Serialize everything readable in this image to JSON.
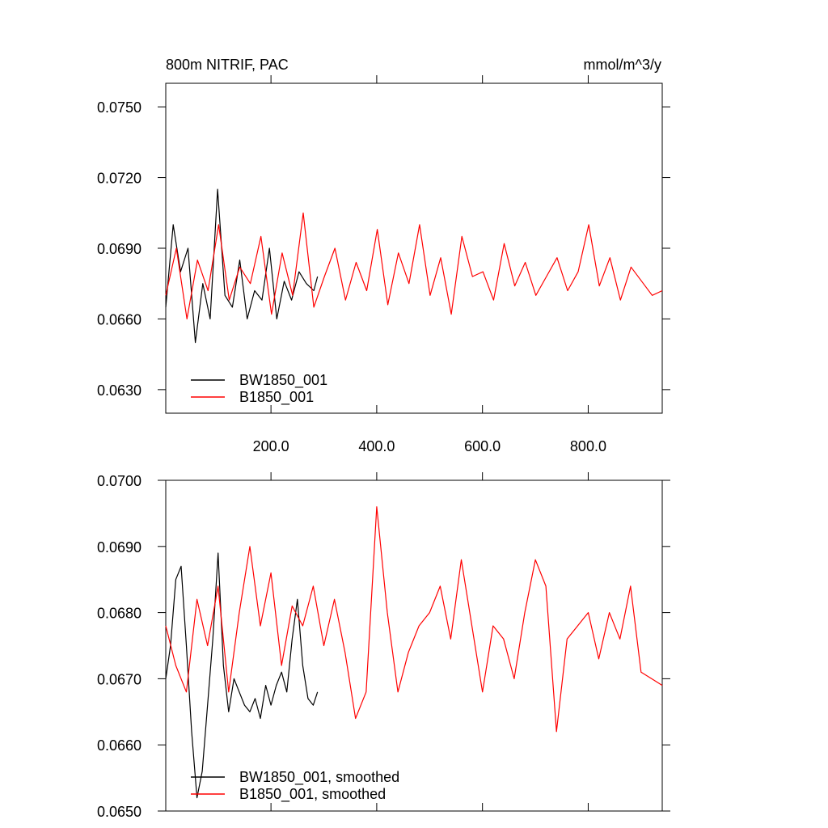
{
  "chart_data": [
    {
      "type": "line",
      "title": "800m NITRIF, PAC",
      "units": "mmol/m^3/y",
      "xlim": [
        1,
        940
      ],
      "ylim": [
        0.062,
        0.076
      ],
      "x_ticks": [
        {
          "value": 200,
          "label": "200.0"
        },
        {
          "value": 400,
          "label": "400.0"
        },
        {
          "value": 600,
          "label": "600.0"
        },
        {
          "value": 800,
          "label": "800.0"
        }
      ],
      "y_ticks": [
        {
          "value": 0.063,
          "label": "0.0630"
        },
        {
          "value": 0.066,
          "label": "0.0660"
        },
        {
          "value": 0.069,
          "label": "0.0690"
        },
        {
          "value": 0.072,
          "label": "0.0720"
        },
        {
          "value": 0.075,
          "label": "0.0750"
        }
      ],
      "grid": false,
      "legend_position": "bottom-left",
      "series": [
        {
          "name": "BW1850_001",
          "color": "#000000",
          "x": [
            1,
            15,
            29,
            43,
            57,
            71,
            85,
            99,
            113,
            127,
            141,
            155,
            169,
            183,
            197,
            211,
            225,
            239,
            253,
            267,
            281,
            288
          ],
          "values": [
            0.0665,
            0.07,
            0.068,
            0.069,
            0.065,
            0.0675,
            0.066,
            0.0715,
            0.067,
            0.0665,
            0.0685,
            0.066,
            0.0672,
            0.0668,
            0.069,
            0.066,
            0.0676,
            0.0668,
            0.068,
            0.0675,
            0.0672,
            0.0678
          ]
        },
        {
          "name": "B1850_001",
          "color": "#ff0000",
          "x": [
            1,
            21,
            41,
            61,
            81,
            101,
            121,
            141,
            161,
            181,
            201,
            221,
            241,
            261,
            281,
            301,
            321,
            341,
            361,
            381,
            401,
            421,
            441,
            461,
            481,
            501,
            521,
            541,
            561,
            581,
            601,
            621,
            641,
            661,
            681,
            701,
            721,
            741,
            761,
            781,
            801,
            821,
            841,
            861,
            881,
            901,
            921,
            940
          ],
          "values": [
            0.067,
            0.069,
            0.066,
            0.0685,
            0.0672,
            0.07,
            0.0668,
            0.0682,
            0.0675,
            0.0695,
            0.0662,
            0.0688,
            0.067,
            0.0705,
            0.0665,
            0.0678,
            0.069,
            0.0668,
            0.0684,
            0.0672,
            0.0698,
            0.0666,
            0.0688,
            0.0675,
            0.07,
            0.067,
            0.0686,
            0.0662,
            0.0695,
            0.0678,
            0.068,
            0.0668,
            0.0692,
            0.0674,
            0.0684,
            0.067,
            0.0678,
            0.0686,
            0.0672,
            0.068,
            0.07,
            0.0674,
            0.0686,
            0.0668,
            0.0682,
            0.0676,
            0.067,
            0.0672
          ]
        }
      ]
    },
    {
      "type": "line",
      "title": "",
      "units": "",
      "xlim": [
        1,
        940
      ],
      "ylim": [
        0.065,
        0.07
      ],
      "x_ticks": [
        {
          "value": 200,
          "label": ""
        },
        {
          "value": 400,
          "label": ""
        },
        {
          "value": 600,
          "label": ""
        },
        {
          "value": 800,
          "label": ""
        }
      ],
      "y_ticks": [
        {
          "value": 0.065,
          "label": "0.0650"
        },
        {
          "value": 0.066,
          "label": "0.0660"
        },
        {
          "value": 0.067,
          "label": "0.0670"
        },
        {
          "value": 0.068,
          "label": "0.0680"
        },
        {
          "value": 0.069,
          "label": "0.0690"
        },
        {
          "value": 0.07,
          "label": "0.0700"
        }
      ],
      "grid": false,
      "legend_position": "bottom-left",
      "series": [
        {
          "name": "BW1850_001, smoothed",
          "color": "#000000",
          "x": [
            1,
            10,
            20,
            30,
            40,
            50,
            60,
            70,
            80,
            90,
            100,
            110,
            120,
            130,
            140,
            150,
            160,
            170,
            180,
            190,
            200,
            210,
            220,
            230,
            240,
            250,
            260,
            270,
            280,
            288
          ],
          "values": [
            0.067,
            0.0675,
            0.0685,
            0.0687,
            0.0675,
            0.0662,
            0.0652,
            0.0656,
            0.0666,
            0.0676,
            0.0689,
            0.0672,
            0.0665,
            0.067,
            0.0668,
            0.0666,
            0.0665,
            0.0667,
            0.0664,
            0.0669,
            0.0666,
            0.0669,
            0.0671,
            0.0668,
            0.0676,
            0.0682,
            0.0672,
            0.0667,
            0.0666,
            0.0668
          ]
        },
        {
          "name": "B1850_001, smoothed",
          "color": "#ff0000",
          "x": [
            1,
            20,
            40,
            60,
            80,
            100,
            120,
            140,
            160,
            180,
            200,
            220,
            240,
            260,
            280,
            300,
            320,
            340,
            360,
            380,
            400,
            420,
            440,
            460,
            480,
            500,
            520,
            540,
            560,
            580,
            600,
            620,
            640,
            660,
            680,
            700,
            720,
            740,
            760,
            780,
            800,
            820,
            840,
            860,
            880,
            900,
            920,
            940
          ],
          "values": [
            0.0678,
            0.0672,
            0.0668,
            0.0682,
            0.0675,
            0.0684,
            0.0668,
            0.068,
            0.069,
            0.0678,
            0.0686,
            0.0672,
            0.0681,
            0.0678,
            0.0684,
            0.0675,
            0.0682,
            0.0674,
            0.0664,
            0.0668,
            0.0696,
            0.068,
            0.0668,
            0.0674,
            0.0678,
            0.068,
            0.0684,
            0.0676,
            0.0688,
            0.0678,
            0.0668,
            0.0678,
            0.0676,
            0.067,
            0.068,
            0.0688,
            0.0684,
            0.0662,
            0.0676,
            0.0678,
            0.068,
            0.0673,
            0.068,
            0.0676,
            0.0684,
            0.0671,
            0.067,
            0.0669
          ]
        }
      ]
    }
  ]
}
